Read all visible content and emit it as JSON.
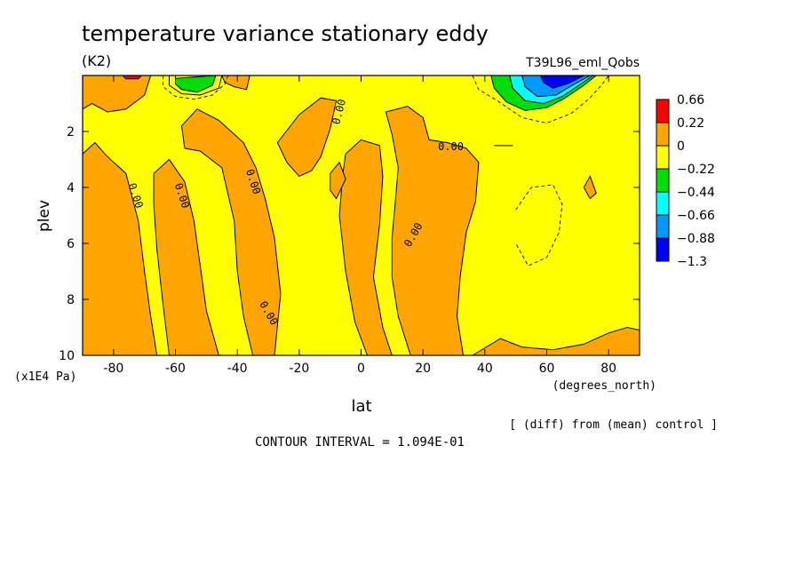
{
  "chart_data": {
    "type": "heatmap",
    "title": "temperature variance stationary eddy",
    "units": "(K2)",
    "run_label": "T39L96_eml_Qobs",
    "xlabel": "lat",
    "x_units": "(degrees_north)",
    "ylabel": "plev",
    "y_units": "(x1E4 Pa)",
    "xlim": [
      -90,
      90
    ],
    "ylim": [
      10,
      0
    ],
    "x_ticks": [
      -80,
      -60,
      -40,
      -20,
      0,
      20,
      40,
      60,
      80
    ],
    "x_tick_labels": [
      "-80",
      "-60",
      "-40",
      "-20",
      "0",
      "20",
      "40",
      "60",
      "80"
    ],
    "y_ticks": [
      2,
      4,
      6,
      8,
      10
    ],
    "y_tick_labels": [
      "2",
      "4",
      "6",
      "8",
      "10"
    ],
    "contour_label": "0.00",
    "contour_interval_text": "CONTOUR INTERVAL = 1.094E-01",
    "note": "[ (diff) from (mean) control ]",
    "colorbar": {
      "levels": [
        "0.66",
        "0.22",
        "0",
        "−0.22",
        "−0.44",
        "−0.66",
        "−0.88",
        "−1.3"
      ],
      "colors": [
        "#ff0000",
        "#ffa500",
        "#ffff00",
        "#00dd00",
        "#00ffff",
        "#0099ff",
        "#0000ff"
      ]
    },
    "background_color": "#ffff00",
    "regions": [
      {
        "level": "0 to 0.22",
        "color": "#ffa500",
        "points": [
          [
            -90,
            0
          ],
          [
            -68,
            0
          ],
          [
            -70,
            0.7
          ],
          [
            -76,
            1.2
          ],
          [
            -82,
            1.3
          ],
          [
            -87,
            1.0
          ],
          [
            -90,
            1.2
          ]
        ]
      },
      {
        "level": "0 to 0.22",
        "color": "#ffa500",
        "points": [
          [
            -90,
            2.8
          ],
          [
            -86,
            2.4
          ],
          [
            -82,
            2.9
          ],
          [
            -76,
            3.5
          ],
          [
            -72,
            5.2
          ],
          [
            -70,
            7.0
          ],
          [
            -68,
            8.6
          ],
          [
            -66,
            10
          ],
          [
            -90,
            10
          ]
        ]
      },
      {
        "level": "0 to 0.22",
        "color": "#ffa500",
        "points": [
          [
            -67,
            3.5
          ],
          [
            -62,
            3.0
          ],
          [
            -57,
            3.8
          ],
          [
            -54,
            5.2
          ],
          [
            -52,
            6.8
          ],
          [
            -50,
            8.4
          ],
          [
            -46,
            10
          ],
          [
            -62,
            10
          ],
          [
            -64,
            8.2
          ],
          [
            -66,
            6.2
          ],
          [
            -67,
            4.6
          ]
        ]
      },
      {
        "level": "0 to 0.22",
        "color": "#ffa500",
        "points": [
          [
            -58,
            1.8
          ],
          [
            -53,
            1.2
          ],
          [
            -46,
            1.6
          ],
          [
            -38,
            2.4
          ],
          [
            -34,
            3.3
          ],
          [
            -31,
            4.4
          ],
          [
            -28,
            5.8
          ],
          [
            -26,
            7.8
          ],
          [
            -28,
            10
          ],
          [
            -35,
            10
          ],
          [
            -38,
            8.6
          ],
          [
            -40,
            7.0
          ],
          [
            -41,
            5.2
          ],
          [
            -45,
            3.3
          ],
          [
            -52,
            2.7
          ],
          [
            -57,
            2.6
          ]
        ]
      },
      {
        "level": "0 to 0.22",
        "color": "#ffa500",
        "points": [
          [
            -27,
            2.4
          ],
          [
            -20,
            1.4
          ],
          [
            -13,
            0.8
          ],
          [
            -8,
            0.9
          ],
          [
            -10,
            1.9
          ],
          [
            -13,
            2.9
          ],
          [
            -16,
            3.4
          ],
          [
            -20,
            3.6
          ],
          [
            -24,
            3.1
          ]
        ]
      },
      {
        "level": "0 to 0.22",
        "color": "#ffa500",
        "points": [
          [
            -5,
            2.8
          ],
          [
            0,
            2.3
          ],
          [
            6,
            2.5
          ],
          [
            7,
            3.6
          ],
          [
            6,
            5.3
          ],
          [
            4,
            7.2
          ],
          [
            7,
            9.0
          ],
          [
            10,
            10
          ],
          [
            2,
            10
          ],
          [
            -2,
            8.8
          ],
          [
            -5,
            7.0
          ],
          [
            -7,
            5.0
          ],
          [
            -6,
            3.6
          ]
        ]
      },
      {
        "level": "0 to 0.22",
        "color": "#ffa500",
        "points": [
          [
            -10,
            3.5
          ],
          [
            -7,
            3.1
          ],
          [
            -5,
            3.7
          ],
          [
            -8,
            4.4
          ],
          [
            -10,
            4.1
          ]
        ]
      },
      {
        "level": "0 to 0.22",
        "color": "#ffa500",
        "points": [
          [
            8,
            1.3
          ],
          [
            15,
            1.1
          ],
          [
            20,
            1.5
          ],
          [
            22,
            2.3
          ],
          [
            28,
            2.4
          ],
          [
            34,
            2.6
          ],
          [
            38,
            3.1
          ],
          [
            37,
            4.5
          ],
          [
            34,
            5.6
          ],
          [
            32,
            7.2
          ],
          [
            31,
            8.6
          ],
          [
            33,
            10
          ],
          [
            16,
            10
          ],
          [
            12,
            8.6
          ],
          [
            10,
            7.2
          ],
          [
            10,
            5.8
          ],
          [
            11,
            4.6
          ],
          [
            12,
            3.3
          ],
          [
            10,
            2.1
          ]
        ]
      },
      {
        "level": "0 to 0.22",
        "color": "#ffa500",
        "points": [
          [
            36,
            10
          ],
          [
            45,
            9.4
          ],
          [
            52,
            9.7
          ],
          [
            62,
            9.8
          ],
          [
            72,
            9.6
          ],
          [
            80,
            9.2
          ],
          [
            86,
            9.0
          ],
          [
            90,
            9.1
          ],
          [
            90,
            10
          ]
        ]
      },
      {
        "level": "0 to 0.22",
        "color": "#ffa500",
        "points": [
          [
            72,
            4.0
          ],
          [
            74,
            3.6
          ],
          [
            76,
            4.2
          ],
          [
            74,
            4.4
          ]
        ]
      },
      {
        "level": "0 to 0.22",
        "color": "#ffa500",
        "points": [
          [
            -45,
            0
          ],
          [
            -36,
            0
          ],
          [
            -37,
            0.5
          ],
          [
            -41,
            0.4
          ],
          [
            -44,
            0.25
          ]
        ]
      },
      {
        "level": "0.22 to 0.66",
        "color": "#ff0000",
        "points": [
          [
            -77,
            0
          ],
          [
            -71,
            0
          ],
          [
            -72,
            0.12
          ],
          [
            -76,
            0.12
          ]
        ]
      },
      {
        "level": "-0.22 to 0",
        "color": "#ffff00",
        "points": [
          [
            -62,
            0
          ],
          [
            -45,
            0
          ],
          [
            -46,
            0.45
          ],
          [
            -52,
            0.7
          ],
          [
            -58,
            0.65
          ],
          [
            -62,
            0.35
          ]
        ]
      },
      {
        "level": "-0.44 to -0.22",
        "color": "#00dd00",
        "points": [
          [
            -60,
            0.1
          ],
          [
            -47,
            0
          ],
          [
            -48,
            0.35
          ],
          [
            -53,
            0.6
          ],
          [
            -58,
            0.5
          ],
          [
            -60,
            0.3
          ]
        ]
      },
      {
        "level": "-0.44 to -0.22",
        "color": "#00dd00",
        "points": [
          [
            42,
            0
          ],
          [
            76,
            0
          ],
          [
            72,
            0.35
          ],
          [
            66,
            0.8
          ],
          [
            60,
            1.15
          ],
          [
            53,
            1.25
          ],
          [
            47,
            0.95
          ],
          [
            43,
            0.45
          ]
        ]
      },
      {
        "level": "-0.66 to -0.44",
        "color": "#00ffff",
        "points": [
          [
            48,
            0
          ],
          [
            75,
            0
          ],
          [
            71,
            0.3
          ],
          [
            65,
            0.75
          ],
          [
            59,
            1.0
          ],
          [
            53,
            0.9
          ],
          [
            49,
            0.45
          ]
        ]
      },
      {
        "level": "-0.88 to -0.66",
        "color": "#0099ff",
        "points": [
          [
            52,
            0
          ],
          [
            74,
            0
          ],
          [
            69,
            0.3
          ],
          [
            63,
            0.7
          ],
          [
            57,
            0.75
          ],
          [
            53,
            0.4
          ]
        ]
      },
      {
        "level": "-1.3 to -0.88",
        "color": "#0000ff",
        "points": [
          [
            58,
            0
          ],
          [
            72,
            0
          ],
          [
            67,
            0.28
          ],
          [
            62,
            0.45
          ],
          [
            59,
            0.25
          ]
        ]
      }
    ],
    "dashed_contours": [
      [
        [
          -64,
          0
        ],
        [
          -64,
          0.4
        ],
        [
          -60,
          0.75
        ],
        [
          -54,
          0.85
        ],
        [
          -48,
          0.7
        ],
        [
          -44,
          0.3
        ],
        [
          -43,
          0
        ]
      ],
      [
        [
          36,
          0
        ],
        [
          38,
          0.5
        ],
        [
          44,
          0.9
        ],
        [
          52,
          1.5
        ],
        [
          60,
          1.7
        ],
        [
          68,
          1.35
        ],
        [
          74,
          0.8
        ],
        [
          78,
          0.3
        ],
        [
          80,
          0
        ]
      ],
      [
        [
          50,
          4.8
        ],
        [
          55,
          4.0
        ],
        [
          62,
          3.9
        ],
        [
          65,
          4.6
        ],
        [
          64,
          5.6
        ],
        [
          60,
          6.5
        ],
        [
          54,
          6.8
        ],
        [
          50,
          6.0
        ]
      ]
    ],
    "contour_segments": [
      [
        [
          43,
          2.5
        ],
        [
          49,
          2.5
        ]
      ]
    ],
    "contour_labels": [
      {
        "x": -73,
        "y": 4.3,
        "angle": 72
      },
      {
        "x": -58,
        "y": 4.3,
        "angle": 72
      },
      {
        "x": -35,
        "y": 3.8,
        "angle": 72
      },
      {
        "x": -30,
        "y": 8.5,
        "angle": 60
      },
      {
        "x": -7,
        "y": 1.3,
        "angle": -75
      },
      {
        "x": 17,
        "y": 5.7,
        "angle": -60
      },
      {
        "x": 29,
        "y": 2.55,
        "angle": 0
      }
    ]
  }
}
